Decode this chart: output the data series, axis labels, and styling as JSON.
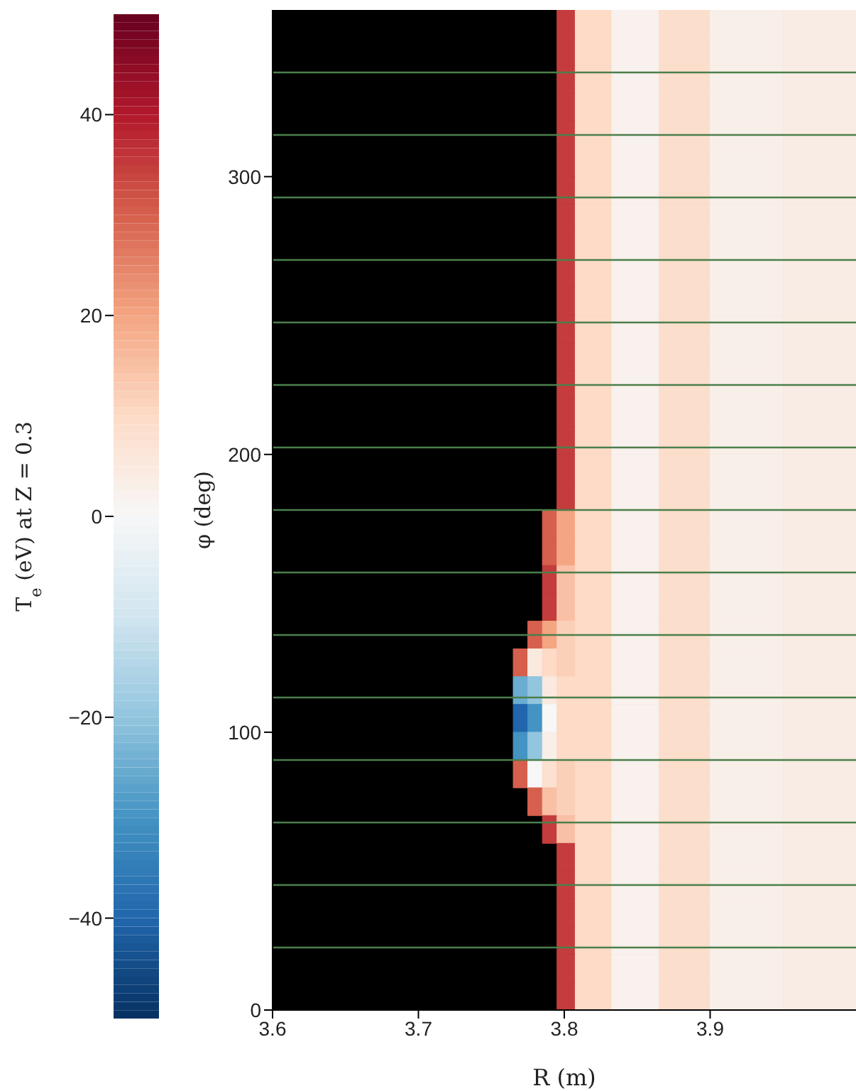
{
  "chart_data": {
    "type": "heatmap",
    "xlabel": "R (m)",
    "ylabel": "φ (deg)",
    "clabel": "T$_{e}$ (eV) at Z = 0.3",
    "x": [
      3.7,
      3.76,
      3.77,
      3.78,
      3.79,
      3.8,
      3.815,
      3.85,
      3.88,
      3.92,
      3.98
    ],
    "xlim": [
      3.6,
      4.0
    ],
    "xticks": [
      3.6,
      3.7,
      3.8,
      3.9
    ],
    "ylim": [
      0,
      360
    ],
    "yticks": [
      0,
      100,
      200,
      300
    ],
    "clim": [
      -50,
      50
    ],
    "cticks": [
      -40,
      -20,
      0,
      20,
      40
    ],
    "cells": [
      [
        null,
        null,
        null,
        null,
        null,
        35,
        10,
        2,
        9,
        3,
        4
      ],
      [
        null,
        null,
        null,
        null,
        null,
        35,
        10,
        2,
        9,
        3,
        4
      ],
      [
        null,
        null,
        null,
        null,
        null,
        35,
        10,
        2,
        9,
        3,
        4
      ],
      [
        null,
        null,
        null,
        null,
        null,
        35,
        10,
        2,
        9,
        3,
        4
      ],
      [
        null,
        null,
        null,
        null,
        null,
        35,
        10,
        2,
        9,
        3,
        4
      ],
      [
        null,
        null,
        null,
        null,
        null,
        35,
        10,
        2,
        9,
        3,
        4
      ],
      [
        null,
        null,
        null,
        null,
        null,
        35,
        10,
        2,
        9,
        3,
        4
      ],
      [
        null,
        null,
        null,
        null,
        null,
        35,
        10,
        2,
        9,
        3,
        4
      ],
      [
        null,
        null,
        null,
        null,
        null,
        35,
        10,
        2,
        9,
        3,
        4
      ],
      [
        null,
        null,
        null,
        null,
        null,
        35,
        10,
        2,
        9,
        3,
        4
      ],
      [
        null,
        null,
        null,
        null,
        null,
        35,
        10,
        2,
        9,
        3,
        4
      ],
      [
        null,
        null,
        null,
        null,
        null,
        35,
        10,
        2,
        9,
        3,
        4
      ],
      [
        null,
        null,
        null,
        null,
        null,
        35,
        10,
        2,
        9,
        3,
        4
      ],
      [
        null,
        null,
        null,
        null,
        null,
        35,
        10,
        2,
        9,
        3,
        4
      ],
      [
        null,
        null,
        null,
        null,
        null,
        35,
        10,
        2,
        9,
        3,
        4
      ],
      [
        null,
        null,
        null,
        null,
        null,
        35,
        10,
        2,
        9,
        3,
        4
      ],
      [
        null,
        null,
        null,
        null,
        null,
        35,
        10,
        2,
        9,
        3,
        4
      ],
      [
        null,
        null,
        null,
        null,
        null,
        35,
        10,
        2,
        9,
        3,
        4
      ],
      [
        null,
        null,
        null,
        null,
        30,
        20,
        10,
        2,
        9,
        3,
        4
      ],
      [
        null,
        null,
        null,
        null,
        30,
        20,
        10,
        2,
        9,
        3,
        4
      ],
      [
        null,
        null,
        null,
        null,
        35,
        15,
        10,
        2,
        9,
        3,
        4
      ],
      [
        null,
        null,
        null,
        null,
        35,
        15,
        10,
        2,
        9,
        3,
        4
      ],
      [
        null,
        null,
        null,
        30,
        20,
        12,
        10,
        2,
        9,
        3,
        4
      ],
      [
        null,
        null,
        30,
        5,
        10,
        12,
        10,
        2,
        9,
        3,
        4
      ],
      [
        null,
        null,
        -25,
        -20,
        5,
        10,
        10,
        2,
        9,
        3,
        4
      ],
      [
        null,
        null,
        -40,
        -30,
        0,
        10,
        10,
        2,
        9,
        3,
        4
      ],
      [
        null,
        null,
        -30,
        -20,
        3,
        10,
        10,
        2,
        9,
        3,
        4
      ],
      [
        null,
        null,
        30,
        0,
        8,
        12,
        10,
        2,
        9,
        3,
        4
      ],
      [
        null,
        null,
        null,
        30,
        15,
        12,
        10,
        2,
        9,
        3,
        4
      ],
      [
        null,
        null,
        null,
        null,
        35,
        15,
        10,
        2,
        9,
        3,
        4
      ],
      [
        null,
        null,
        null,
        null,
        null,
        35,
        10,
        2,
        9,
        3,
        4
      ],
      [
        null,
        null,
        null,
        null,
        null,
        35,
        10,
        2,
        9,
        3,
        4
      ],
      [
        null,
        null,
        null,
        null,
        null,
        35,
        10,
        2,
        9,
        3,
        4
      ],
      [
        null,
        null,
        null,
        null,
        null,
        35,
        10,
        2,
        9,
        3,
        4
      ],
      [
        null,
        null,
        null,
        null,
        null,
        35,
        10,
        2,
        9,
        3,
        4
      ],
      [
        null,
        null,
        null,
        null,
        null,
        35,
        10,
        2,
        9,
        3,
        4
      ]
    ],
    "ref_lines": [
      {
        "axis": "y",
        "value": 22.5,
        "color": "#4b7f4b"
      },
      {
        "axis": "y",
        "value": 45,
        "color": "#4b7f4b"
      },
      {
        "axis": "y",
        "value": 67.5,
        "color": "#4b7f4b"
      },
      {
        "axis": "y",
        "value": 90,
        "color": "#4b7f4b"
      },
      {
        "axis": "y",
        "value": 112.5,
        "color": "#4b7f4b"
      },
      {
        "axis": "y",
        "value": 135,
        "color": "#4b7f4b"
      },
      {
        "axis": "y",
        "value": 157.5,
        "color": "#4b7f4b"
      },
      {
        "axis": "y",
        "value": 180,
        "color": "#4b7f4b"
      },
      {
        "axis": "y",
        "value": 202.5,
        "color": "#4b7f4b"
      },
      {
        "axis": "y",
        "value": 225,
        "color": "#4b7f4b"
      },
      {
        "axis": "y",
        "value": 247.5,
        "color": "#4b7f4b"
      },
      {
        "axis": "y",
        "value": 270,
        "color": "#4b7f4b"
      },
      {
        "axis": "y",
        "value": 292.5,
        "color": "#4b7f4b"
      },
      {
        "axis": "y",
        "value": 315,
        "color": "#4b7f4b"
      },
      {
        "axis": "y",
        "value": 337.5,
        "color": "#4b7f4b"
      }
    ]
  }
}
